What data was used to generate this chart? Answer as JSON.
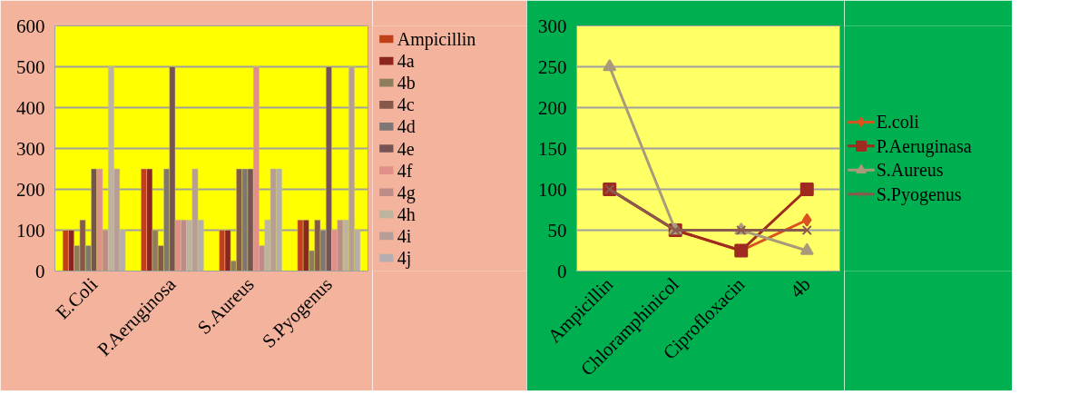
{
  "chart_data": [
    {
      "type": "bar",
      "categories": [
        "E.Coli",
        "P.Aeruginosa",
        "S.Aureus",
        "S.Pyogenus"
      ],
      "ylim": [
        0,
        600
      ],
      "yticks": [
        0,
        100,
        200,
        300,
        400,
        500,
        600
      ],
      "grid": "y",
      "legend": "right",
      "series": [
        {
          "name": "Ampicillin",
          "color": "#c0401a",
          "values": [
            100,
            250,
            100,
            125
          ]
        },
        {
          "name": "4a",
          "color": "#8b2520",
          "values": [
            100,
            250,
            100,
            125
          ]
        },
        {
          "name": "4b",
          "color": "#8e7d5d",
          "values": [
            62.5,
            100,
            25,
            50
          ]
        },
        {
          "name": "4c",
          "color": "#86584a",
          "values": [
            125,
            62.5,
            250,
            125
          ]
        },
        {
          "name": "4d",
          "color": "#807676",
          "values": [
            62.5,
            250,
            250,
            100
          ]
        },
        {
          "name": "4e",
          "color": "#775356",
          "values": [
            250,
            500,
            250,
            500
          ]
        },
        {
          "name": "4f",
          "color": "#e09088",
          "values": [
            250,
            125,
            500,
            100
          ]
        },
        {
          "name": "4g",
          "color": "#bb8c88",
          "values": [
            100,
            125,
            62.5,
            125
          ]
        },
        {
          "name": "4h",
          "color": "#bdb39f",
          "values": [
            500,
            125,
            125,
            125
          ]
        },
        {
          "name": "4i",
          "color": "#b89d97",
          "values": [
            250,
            250,
            250,
            500
          ]
        },
        {
          "name": "4j",
          "color": "#b5adb0",
          "values": [
            100,
            125,
            250,
            100
          ]
        }
      ]
    },
    {
      "type": "line",
      "categories": [
        "Ampicillin",
        "Chloramphinicol",
        "Ciprofloxacin",
        "4b"
      ],
      "ylim": [
        0,
        300
      ],
      "yticks": [
        0,
        50,
        100,
        150,
        200,
        250,
        300
      ],
      "grid": "y",
      "legend": "right",
      "line_style": "solid",
      "series": [
        {
          "name": "E.coli",
          "color": "#d9531e",
          "marker": "diamond",
          "values": [
            100,
            50,
            25,
            62.5
          ]
        },
        {
          "name": "P.Aeruginasa",
          "color": "#9e2a20",
          "marker": "square",
          "values": [
            100,
            50,
            25,
            100
          ]
        },
        {
          "name": "S.Aureus",
          "color": "#a89a7a",
          "marker": "triangle",
          "values": [
            250,
            50,
            50,
            25
          ]
        },
        {
          "name": "S.Pyogenus",
          "color": "#8b5a4e",
          "marker": "cross",
          "values": [
            100,
            50,
            50,
            50
          ]
        }
      ]
    }
  ]
}
